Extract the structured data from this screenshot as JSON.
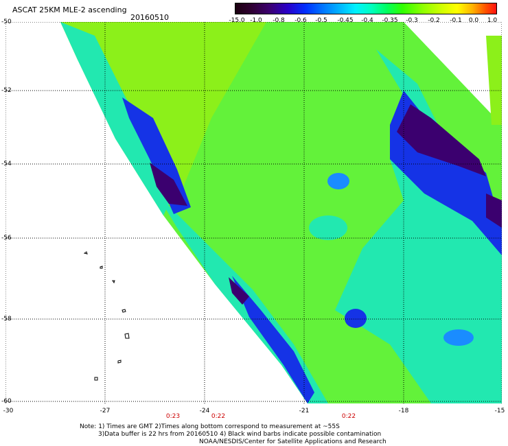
{
  "header": {
    "title": "ASCAT 25KM MLE-2 ascending",
    "date": "20160510"
  },
  "colorbar": {
    "labels": [
      "-15.0",
      "-1.0",
      "-0.8",
      "-0.6",
      "-0.5",
      "-0.45",
      "-0.4",
      "-0.35",
      "-0.3",
      "-0.2",
      "-0.1",
      "0.0",
      "1.0"
    ]
  },
  "axes": {
    "lat_labels": [
      "-50",
      "-52",
      "-54",
      "-56",
      "-58",
      "-60"
    ],
    "lon_labels": [
      "-30",
      "-27",
      "-24",
      "-21",
      "-18",
      "-15"
    ]
  },
  "times": [
    "0:23",
    "0:22",
    "0:22"
  ],
  "notes": {
    "line1": "Note: 1) Times are GMT 2)Times along bottom correspond to measurement at ~55S",
    "line2": "3)Data buffer is 22 hrs from 20160510 4) Black wind barbs indicate possible contamination",
    "line3": "NOAA/NESDIS/Center for Satellite Applications and Research"
  }
}
